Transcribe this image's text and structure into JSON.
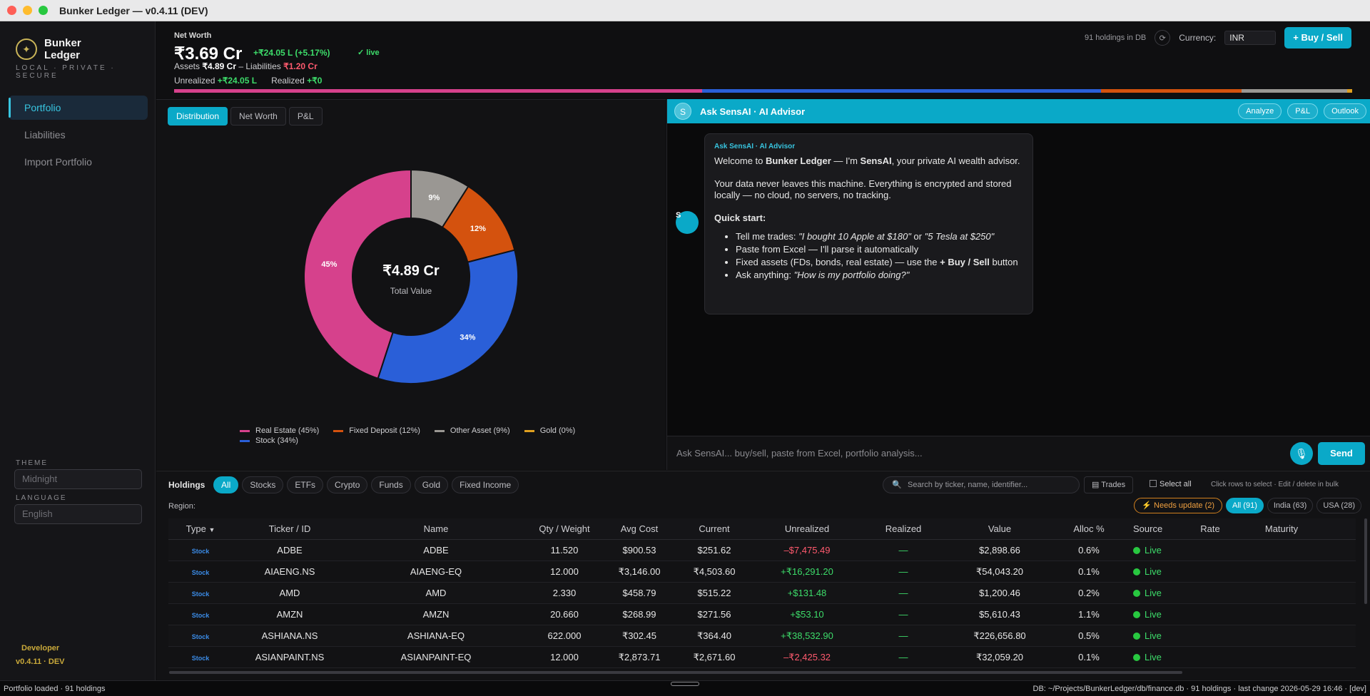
{
  "window": {
    "title": "Bunker Ledger — v0.4.11 (DEV)"
  },
  "sidebar": {
    "brand": "Bunker Ledger",
    "tagline": "LOCAL · PRIVATE · SECURE",
    "items": [
      {
        "label": "Portfolio",
        "active": true
      },
      {
        "label": "Liabilities",
        "active": false
      },
      {
        "label": "Import Portfolio",
        "active": false
      }
    ],
    "theme_label": "THEME",
    "theme_value": "Midnight",
    "language_label": "LANGUAGE",
    "language_value": "English",
    "developer_label": "Developer",
    "version": "v0.4.11 · DEV"
  },
  "summary": {
    "net_worth_label": "Net Worth",
    "net_worth_value": "₹3.69 Cr",
    "change": "+₹24.05 L (+5.17%)",
    "live": "✓ live",
    "assets_label": "Assets",
    "assets_value": "₹4.89 Cr",
    "liabilities_label": "– Liabilities",
    "liabilities_value": "₹1.20 Cr",
    "unrealized_label": "Unrealized",
    "unrealized_value": "+₹24.05 L",
    "realized_label": "Realized",
    "realized_value": "+₹0",
    "holdings_db": "91 holdings in DB",
    "currency_label": "Currency:",
    "currency_value": "INR",
    "buy_sell": "+ Buy / Sell",
    "alloc_colors": [
      "#d6418c",
      "#2a5fd8",
      "#d4520e",
      "#9a9793",
      "#e0a020"
    ],
    "alloc_fractions": [
      0.45,
      0.34,
      0.12,
      0.09,
      0.004
    ]
  },
  "chart_tabs": [
    {
      "label": "Distribution",
      "active": true
    },
    {
      "label": "Net Worth",
      "active": false
    },
    {
      "label": "P&L",
      "active": false
    }
  ],
  "chart_data": {
    "type": "pie",
    "center_value": "₹4.89 Cr",
    "center_label": "Total Value",
    "slices": [
      {
        "name": "Real Estate",
        "value": 45,
        "color": "#d6418c",
        "legend": "Real Estate (45%)"
      },
      {
        "name": "Stock",
        "value": 34,
        "color": "#2a5fd8",
        "legend": "Stock (34%)"
      },
      {
        "name": "Fixed Deposit",
        "value": 12,
        "color": "#d4520e",
        "legend": "Fixed Deposit (12%)"
      },
      {
        "name": "Other Asset",
        "value": 9,
        "color": "#9a9793",
        "legend": "Other Asset (9%)"
      },
      {
        "name": "Gold",
        "value": 0,
        "color": "#e0a020",
        "legend": "Gold (0%)"
      }
    ],
    "legend_order": [
      "Real Estate",
      "Fixed Deposit",
      "Other Asset",
      "Gold",
      "Stock"
    ]
  },
  "ai": {
    "avatar": "S",
    "title": "Ask SensAI · AI Advisor",
    "actions": [
      "Analyze",
      "P&L",
      "Outlook"
    ],
    "bot_initial": "S",
    "msg_head": "Ask SensAI · AI Advisor",
    "welcome_pre": "Welcome to ",
    "welcome_brand": "Bunker Ledger",
    "welcome_mid": " — I'm ",
    "welcome_name": "SensAI",
    "welcome_post": ", your private AI wealth advisor.",
    "privacy": "Your data never leaves this machine. Everything is encrypted and stored locally — no cloud, no servers, no tracking.",
    "quick_start": "Quick start:",
    "tip1_pre": "Tell me trades: ",
    "tip1_ex1": "\"I bought 10 Apple at $180\"",
    "tip1_or": " or ",
    "tip1_ex2": "\"5 Tesla at $250\"",
    "tip2": "Paste from Excel — I'll parse it automatically",
    "tip3_pre": "Fixed assets (FDs, bonds, real estate) — use the ",
    "tip3_btn": "+ Buy / Sell",
    "tip3_post": " button",
    "tip4_pre": "Ask anything: ",
    "tip4_ex": "\"How is my portfolio doing?\"",
    "input_placeholder": "Ask SensAI... buy/sell, paste from Excel, portfolio analysis...",
    "send": "Send"
  },
  "holdings": {
    "title": "Holdings",
    "filters": [
      {
        "label": "All",
        "active": true
      },
      {
        "label": "Stocks",
        "active": false
      },
      {
        "label": "ETFs",
        "active": false
      },
      {
        "label": "Crypto",
        "active": false
      },
      {
        "label": "Funds",
        "active": false
      },
      {
        "label": "Gold",
        "active": false
      },
      {
        "label": "Fixed Income",
        "active": false
      }
    ],
    "region_label": "Region:",
    "search_placeholder": "Search by ticker, name, identifier...",
    "trades": "Trades",
    "select_all": "Select all",
    "click_hint": "Click rows to select · Edit / delete in bulk",
    "needs_update": "⚡ Needs update (2)",
    "regions": [
      {
        "label": "All (91)",
        "active": true
      },
      {
        "label": "India (63)",
        "active": false
      },
      {
        "label": "USA (28)",
        "active": false
      }
    ],
    "columns": [
      "Type",
      "Ticker / ID",
      "Name",
      "Qty / Weight",
      "Avg Cost",
      "Current",
      "Unrealized",
      "Realized",
      "Value",
      "Alloc %",
      "Source",
      "Rate",
      "Maturity"
    ],
    "rows": [
      {
        "type": "Stock",
        "ticker": "ADBE",
        "name": "ADBE",
        "qty": "11.520",
        "avg": "$900.53",
        "current": "$251.62",
        "unrealized": "–$7,475.49",
        "unr_neg": true,
        "realized": "—",
        "value": "$2,898.66",
        "alloc": "0.6%",
        "source": "Live",
        "rate": "",
        "maturity": ""
      },
      {
        "type": "Stock",
        "ticker": "AIAENG.NS",
        "name": "AIAENG-EQ",
        "qty": "12.000",
        "avg": "₹3,146.00",
        "current": "₹4,503.60",
        "unrealized": "+₹16,291.20",
        "unr_neg": false,
        "realized": "—",
        "value": "₹54,043.20",
        "alloc": "0.1%",
        "source": "Live",
        "rate": "",
        "maturity": ""
      },
      {
        "type": "Stock",
        "ticker": "AMD",
        "name": "AMD",
        "qty": "2.330",
        "avg": "$458.79",
        "current": "$515.22",
        "unrealized": "+$131.48",
        "unr_neg": false,
        "realized": "—",
        "value": "$1,200.46",
        "alloc": "0.2%",
        "source": "Live",
        "rate": "",
        "maturity": ""
      },
      {
        "type": "Stock",
        "ticker": "AMZN",
        "name": "AMZN",
        "qty": "20.660",
        "avg": "$268.99",
        "current": "$271.56",
        "unrealized": "+$53.10",
        "unr_neg": false,
        "realized": "—",
        "value": "$5,610.43",
        "alloc": "1.1%",
        "source": "Live",
        "rate": "",
        "maturity": ""
      },
      {
        "type": "Stock",
        "ticker": "ASHIANA.NS",
        "name": "ASHIANA-EQ",
        "qty": "622.000",
        "avg": "₹302.45",
        "current": "₹364.40",
        "unrealized": "+₹38,532.90",
        "unr_neg": false,
        "realized": "—",
        "value": "₹226,656.80",
        "alloc": "0.5%",
        "source": "Live",
        "rate": "",
        "maturity": ""
      },
      {
        "type": "Stock",
        "ticker": "ASIANPAINT.NS",
        "name": "ASIANPAINT-EQ",
        "qty": "12.000",
        "avg": "₹2,873.71",
        "current": "₹2,671.60",
        "unrealized": "–₹2,425.32",
        "unr_neg": true,
        "realized": "—",
        "value": "₹32,059.20",
        "alloc": "0.1%",
        "source": "Live",
        "rate": "",
        "maturity": ""
      }
    ]
  },
  "status": {
    "left": "Portfolio loaded · 91 holdings",
    "right": "DB: ~/Projects/BunkerLedger/db/finance.db · 91 holdings · last change 2026-05-29 16:46 · [dev]"
  }
}
